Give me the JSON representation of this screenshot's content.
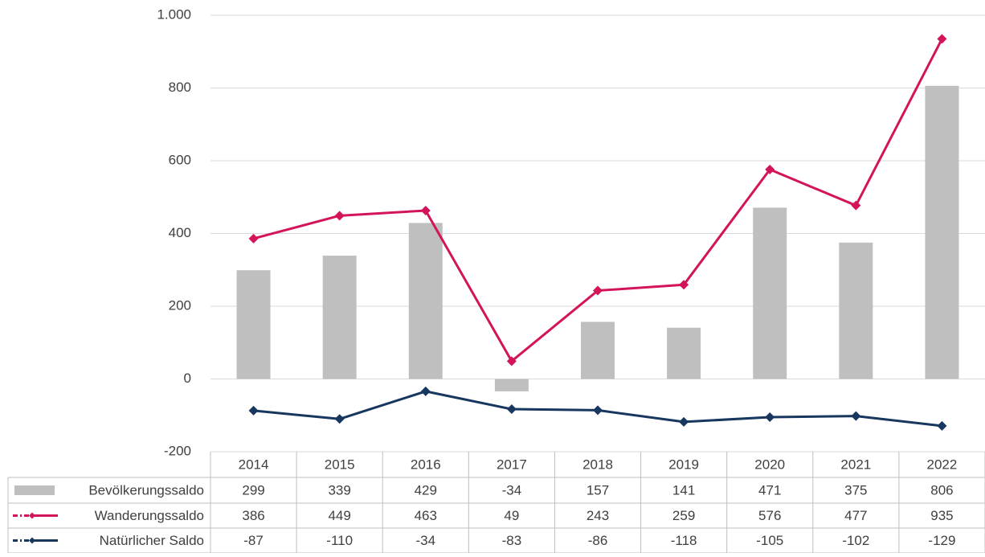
{
  "chart_data": {
    "type": "combo",
    "categories": [
      "2014",
      "2015",
      "2016",
      "2017",
      "2018",
      "2019",
      "2020",
      "2021",
      "2022"
    ],
    "series": [
      {
        "name": "Bevölkerungssaldo",
        "type": "bar",
        "color": "#bfbfbf",
        "values": [
          299,
          339,
          429,
          -34,
          157,
          141,
          471,
          375,
          806
        ]
      },
      {
        "name": "Wanderungssaldo",
        "type": "line",
        "color": "#d4145a",
        "values": [
          386,
          449,
          463,
          49,
          243,
          259,
          576,
          477,
          935
        ]
      },
      {
        "name": "Natürlicher Saldo",
        "type": "line",
        "color": "#17375e",
        "values": [
          -87,
          -110,
          -34,
          -83,
          -86,
          -118,
          -105,
          -102,
          -129
        ]
      }
    ],
    "ylim": [
      -200,
      1000
    ],
    "yticks": [
      -200,
      0,
      200,
      400,
      600,
      800,
      {
        "value": 1000,
        "label": "1.000"
      }
    ],
    "grid": true,
    "data_table": true
  }
}
